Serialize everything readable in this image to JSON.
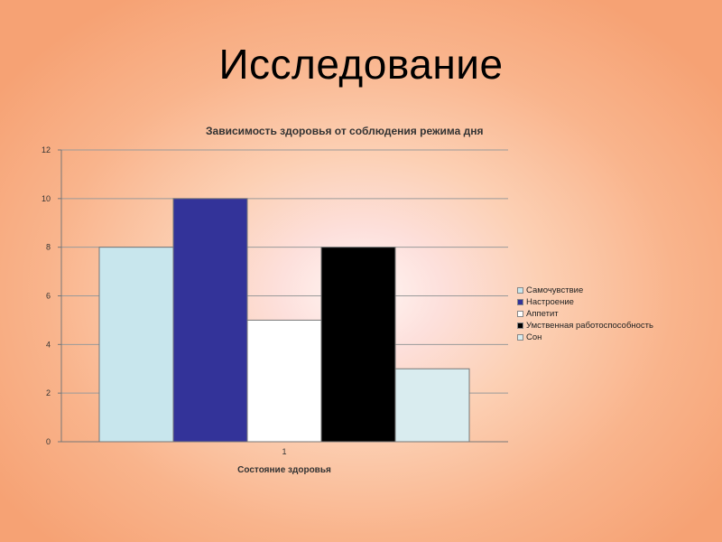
{
  "slide": {
    "title": "Исследование"
  },
  "chart_data": {
    "type": "bar",
    "title": "Зависимость здоровья от соблюдения режима дня",
    "xlabel": "Состояние здоровья",
    "ylabel": "",
    "categories": [
      "1"
    ],
    "ylim": [
      0,
      12
    ],
    "yticks": [
      0,
      2,
      4,
      6,
      8,
      10,
      12
    ],
    "grid": true,
    "legend_position": "right",
    "series": [
      {
        "name": "Самочувствие",
        "values": [
          8
        ],
        "color": "#c8e6ed"
      },
      {
        "name": "Настроение",
        "values": [
          10
        ],
        "color": "#333399"
      },
      {
        "name": "Аппетит",
        "values": [
          5
        ],
        "color": "#ffffff"
      },
      {
        "name": "Умственная работоспособность",
        "values": [
          8
        ],
        "color": "#000000"
      },
      {
        "name": "Сон",
        "values": [
          3
        ],
        "color": "#d9ecef"
      }
    ]
  }
}
